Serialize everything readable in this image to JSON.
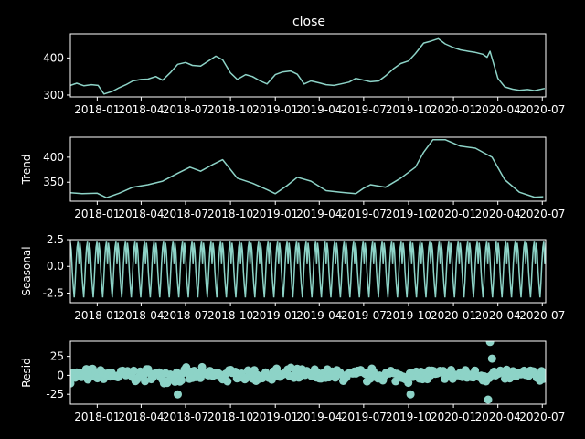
{
  "figure": {
    "title": "close",
    "background": "#000000",
    "foreground": "#ffffff",
    "line_color": "#8dd3c7"
  },
  "x_axis": {
    "ticks": [
      "2018-01",
      "2018-04",
      "2018-07",
      "2018-10",
      "2019-01",
      "2019-04",
      "2019-07",
      "2019-10",
      "2020-01",
      "2020-04",
      "2020-07"
    ],
    "range": [
      "2017-11-07",
      "2020-07-08"
    ]
  },
  "chart_data": [
    {
      "type": "line",
      "title": "close",
      "ylabel": "",
      "ylim": [
        295,
        465
      ],
      "yticks": [
        300,
        400
      ],
      "x": [
        "2017-11-07",
        "2017-11-20",
        "2017-12-05",
        "2017-12-20",
        "2018-01-03",
        "2018-01-15",
        "2018-02-01",
        "2018-02-15",
        "2018-03-01",
        "2018-03-15",
        "2018-04-01",
        "2018-04-15",
        "2018-05-01",
        "2018-05-15",
        "2018-06-01",
        "2018-06-15",
        "2018-07-01",
        "2018-07-15",
        "2018-08-01",
        "2018-08-15",
        "2018-09-01",
        "2018-09-15",
        "2018-10-01",
        "2018-10-15",
        "2018-11-01",
        "2018-11-15",
        "2018-12-01",
        "2018-12-15",
        "2019-01-01",
        "2019-01-15",
        "2019-02-01",
        "2019-02-15",
        "2019-03-01",
        "2019-03-15",
        "2019-04-01",
        "2019-04-15",
        "2019-05-01",
        "2019-05-15",
        "2019-06-01",
        "2019-06-15",
        "2019-07-01",
        "2019-07-15",
        "2019-08-01",
        "2019-08-15",
        "2019-09-01",
        "2019-09-15",
        "2019-10-01",
        "2019-10-15",
        "2019-11-01",
        "2019-11-15",
        "2019-12-01",
        "2019-12-15",
        "2020-01-01",
        "2020-01-15",
        "2020-02-01",
        "2020-02-15",
        "2020-03-01",
        "2020-03-10",
        "2020-03-16",
        "2020-04-01",
        "2020-04-15",
        "2020-05-01",
        "2020-05-15",
        "2020-06-01",
        "2020-06-15",
        "2020-07-06"
      ],
      "series": [
        {
          "values": [
            326,
            332,
            325,
            328,
            326,
            303,
            310,
            320,
            328,
            338,
            342,
            343,
            350,
            340,
            362,
            383,
            388,
            380,
            378,
            390,
            405,
            395,
            360,
            342,
            355,
            350,
            338,
            330,
            355,
            362,
            365,
            356,
            330,
            338,
            333,
            328,
            326,
            330,
            335,
            345,
            340,
            336,
            338,
            352,
            372,
            385,
            392,
            412,
            440,
            445,
            452,
            438,
            428,
            422,
            418,
            415,
            410,
            402,
            418,
            345,
            322,
            316,
            313,
            315,
            312,
            318
          ]
        }
      ]
    },
    {
      "type": "line",
      "ylabel": "Trend",
      "ylim": [
        312,
        440
      ],
      "yticks": [
        350,
        400
      ],
      "x": [
        "2017-11-07",
        "2017-12-01",
        "2018-01-01",
        "2018-01-20",
        "2018-02-15",
        "2018-03-15",
        "2018-04-15",
        "2018-05-15",
        "2018-06-15",
        "2018-07-10",
        "2018-08-01",
        "2018-08-25",
        "2018-09-15",
        "2018-10-15",
        "2018-11-15",
        "2018-12-15",
        "2019-01-01",
        "2019-01-25",
        "2019-02-15",
        "2019-03-15",
        "2019-04-15",
        "2019-05-15",
        "2019-06-15",
        "2019-07-01",
        "2019-07-15",
        "2019-08-15",
        "2019-09-15",
        "2019-10-15",
        "2019-11-01",
        "2019-11-20",
        "2019-12-15",
        "2020-01-15",
        "2020-02-15",
        "2020-03-01",
        "2020-03-20",
        "2020-04-15",
        "2020-05-15",
        "2020-06-15",
        "2020-07-03"
      ],
      "series": [
        {
          "values": [
            329,
            327,
            328,
            319,
            328,
            340,
            345,
            352,
            368,
            380,
            372,
            385,
            395,
            358,
            348,
            335,
            327,
            343,
            360,
            352,
            333,
            330,
            327,
            338,
            345,
            340,
            358,
            380,
            410,
            435,
            435,
            422,
            418,
            410,
            400,
            355,
            330,
            320,
            321
          ]
        }
      ]
    },
    {
      "type": "line",
      "ylabel": "Seasonal",
      "ylim": [
        -3.4,
        2.5
      ],
      "yticks": [
        2.5,
        0.0,
        -2.5
      ],
      "period_days": 20,
      "pattern": [
        2.2,
        1.5,
        -0.5,
        -1.8,
        -2.9,
        -1.5,
        0.3,
        1.8,
        2.3,
        0.2
      ],
      "cycles": 50
    },
    {
      "type": "scatter",
      "ylabel": "Resid",
      "ylim": [
        -38,
        45
      ],
      "yticks": [
        25,
        0,
        -25
      ],
      "x_start": "2017-11-07",
      "x_end": "2020-07-06",
      "spread": 8,
      "outliers": [
        {
          "x": "2018-06-15",
          "y": -25
        },
        {
          "x": "2019-10-05",
          "y": -25
        },
        {
          "x": "2020-03-16",
          "y": 44
        },
        {
          "x": "2020-03-12",
          "y": -32
        },
        {
          "x": "2020-03-20",
          "y": 22
        }
      ]
    }
  ]
}
